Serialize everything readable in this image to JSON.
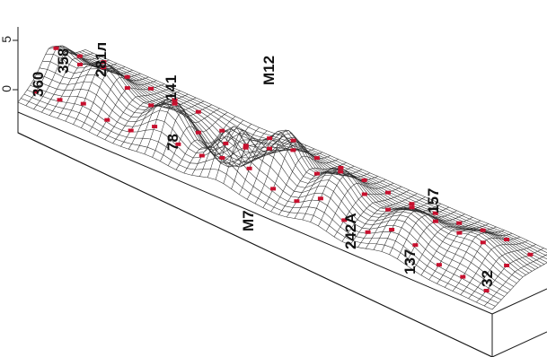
{
  "axis": {
    "ticks": [
      {
        "label": "5"
      },
      {
        "label": "0"
      }
    ]
  },
  "labels": [
    {
      "text": "360"
    },
    {
      "text": "358"
    },
    {
      "text": "281л"
    },
    {
      "text": "141"
    },
    {
      "text": "M12"
    },
    {
      "text": "78"
    },
    {
      "text": "M7"
    },
    {
      "text": "242A"
    },
    {
      "text": "157"
    },
    {
      "text": "137"
    },
    {
      "text": "32"
    }
  ],
  "colors": {
    "mesh": "#2a2a2a",
    "marker": "#c8102e",
    "label": "#111111"
  }
}
